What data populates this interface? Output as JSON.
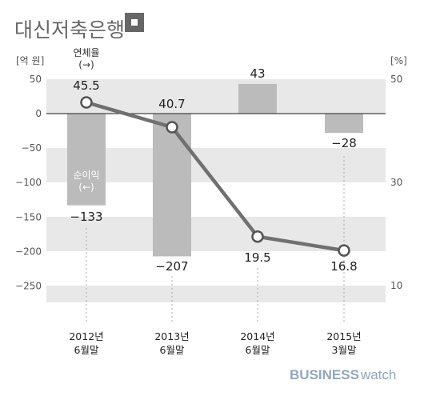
{
  "chart_data": {
    "type": "bar",
    "title": "대신저축은행",
    "categories": [
      "2012년\n6월말",
      "2013년\n6월말",
      "2014년\n6월말",
      "2015년\n3월말"
    ],
    "series": [
      {
        "name": "순이익\n(←)",
        "type": "bar",
        "axis": "left",
        "values": [
          -133,
          -207,
          43,
          -28
        ],
        "color": "#bbbbbb"
      },
      {
        "name": "연체율\n(→)",
        "type": "line",
        "axis": "right",
        "values": [
          45.5,
          40.7,
          19.5,
          16.8
        ],
        "color": "#707070"
      }
    ],
    "y_left": {
      "unit": "[억 원]",
      "min": -280,
      "max": 50,
      "ticks": [
        50,
        0,
        -50,
        -100,
        -150,
        -200,
        -250
      ],
      "tick_labels": [
        "50",
        "0",
        "−50",
        "−100",
        "−150",
        "−200",
        "−250"
      ]
    },
    "y_right": {
      "unit": "[%]",
      "ticks": [
        50,
        30,
        10
      ],
      "tick_labels": [
        "50",
        "30",
        "10"
      ]
    },
    "bar_labels": [
      "−133",
      "−207",
      "43",
      "−28"
    ],
    "line_labels": [
      "45.5",
      "40.7",
      "19.5",
      "16.8"
    ],
    "grid": true,
    "legend": "inline"
  },
  "branding": {
    "part1": "BUSINESS",
    "part2": "watch"
  }
}
